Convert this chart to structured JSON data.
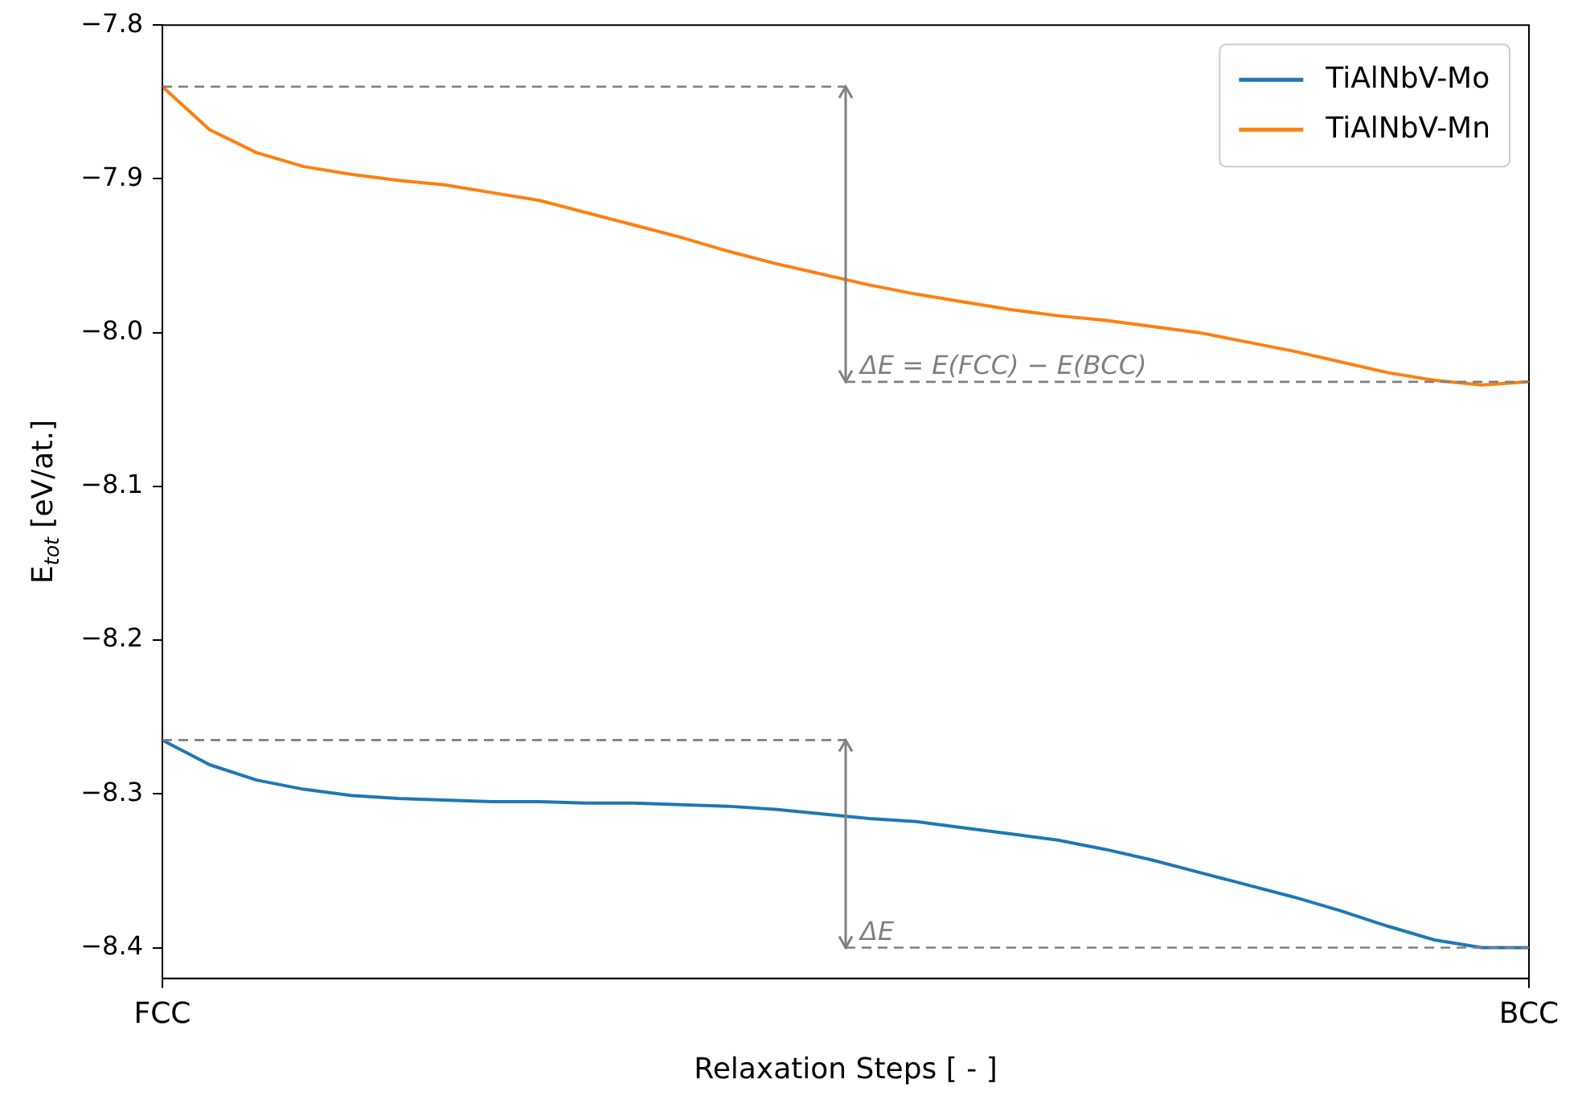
{
  "chart_data": {
    "type": "line",
    "xlabel": "Relaxation Steps [ - ]",
    "ylabel": "E$_{tot}$ [eV/at.]",
    "categories": [
      "FCC",
      null,
      null,
      null,
      null,
      null,
      null,
      null,
      null,
      null,
      null,
      null,
      null,
      null,
      null,
      null,
      null,
      null,
      null,
      null,
      null,
      null,
      null,
      null,
      null,
      null,
      null,
      null,
      null,
      "BCC"
    ],
    "ylim": [
      -8.42,
      -7.8
    ],
    "yticks": [
      -8.4,
      -8.3,
      -8.2,
      -8.1,
      {
        "value": -8.0,
        "label": "−8.0"
      },
      -7.9,
      -7.8
    ],
    "grid": false,
    "legend": "top right",
    "line_style": "solid",
    "marker": "none",
    "series": [
      {
        "name": "TiAlNbV-Mo",
        "color": "#1f77b4",
        "values": [
          -8.265,
          -8.281,
          -8.291,
          -8.297,
          -8.301,
          -8.303,
          -8.304,
          -8.305,
          -8.305,
          -8.306,
          -8.306,
          -8.307,
          -8.308,
          -8.31,
          -8.313,
          -8.316,
          -8.318,
          -8.322,
          -8.326,
          -8.33,
          -8.336,
          -8.343,
          -8.351,
          -8.359,
          -8.367,
          -8.376,
          -8.386,
          -8.395,
          -8.4,
          -8.4
        ]
      },
      {
        "name": "TiAlNbV-Mn",
        "color": "#ff7f0e",
        "values": [
          -7.84,
          -7.868,
          -7.883,
          -7.892,
          -7.897,
          -7.901,
          -7.904,
          -7.909,
          -7.914,
          -7.922,
          -7.93,
          -7.938,
          -7.947,
          -7.955,
          -7.962,
          -7.969,
          -7.975,
          -7.98,
          -7.985,
          -7.989,
          -7.992,
          -7.996,
          -8.0,
          -8.006,
          -8.012,
          -8.019,
          -8.026,
          -8.031,
          -8.034,
          -8.032
        ]
      }
    ],
    "ref_lines": [
      {
        "axis": "y",
        "value": -7.84,
        "color": "#808080",
        "line_style": "dashed"
      },
      {
        "axis": "y",
        "value": -8.032,
        "color": "#808080",
        "line_style": "dashed"
      },
      {
        "axis": "y",
        "value": -8.265,
        "color": "#808080",
        "line_style": "dashed"
      },
      {
        "axis": "y",
        "value": -8.4,
        "color": "#808080",
        "line_style": "dashed"
      }
    ],
    "annotations": [
      {
        "text": "ΔE = E(FCC) − E(BCC)",
        "y": -8.032
      },
      {
        "text": "ΔE",
        "y": -8.4
      }
    ]
  }
}
